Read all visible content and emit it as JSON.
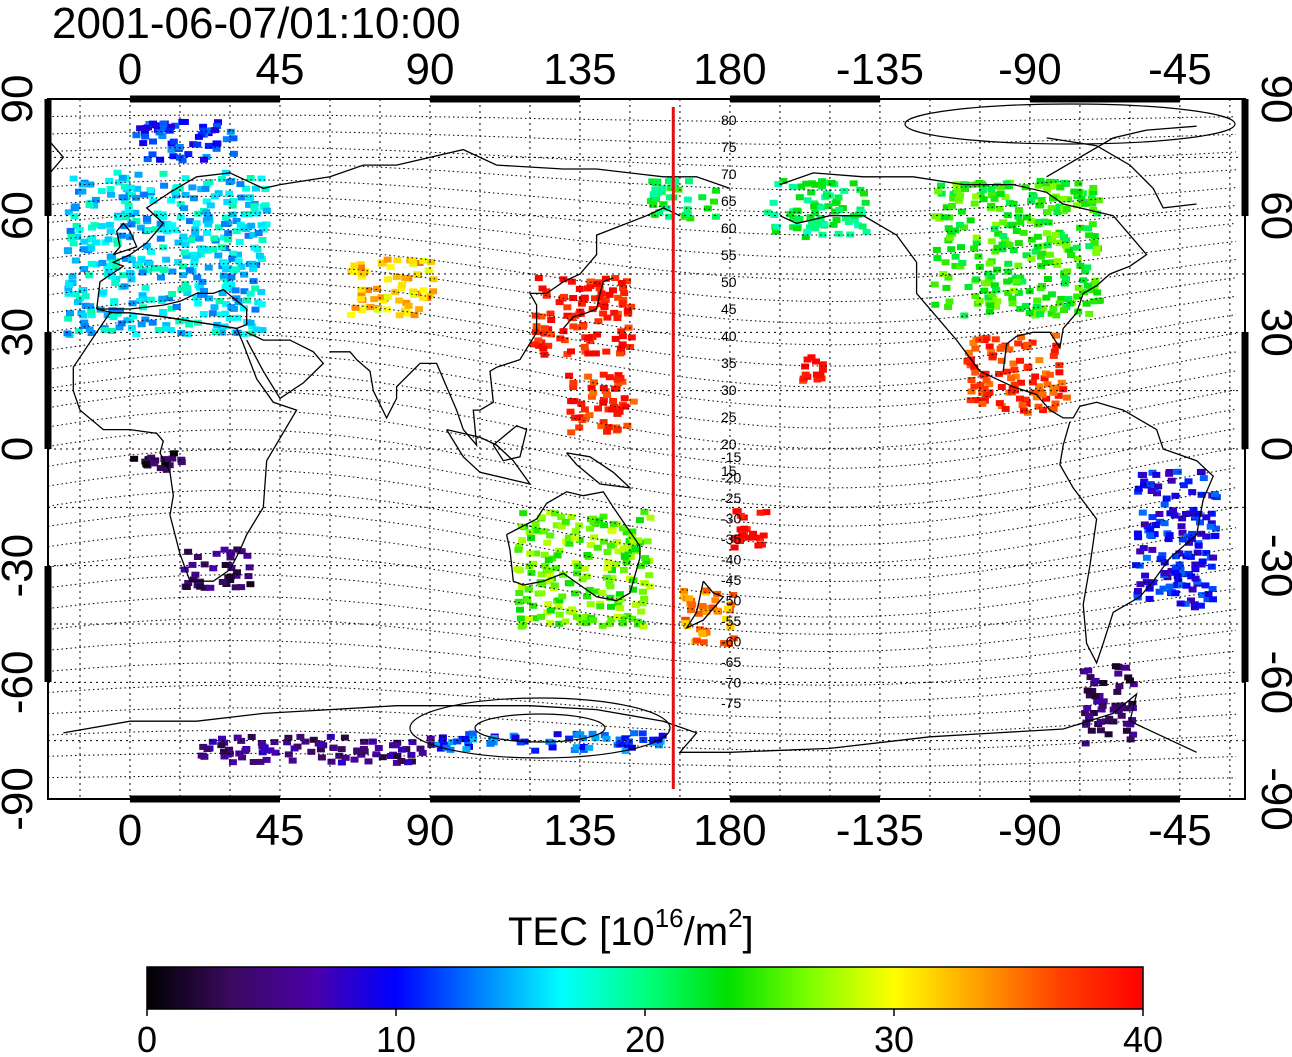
{
  "title": "2001-06-07/01:10:00",
  "longitude_ticks": [
    "0",
    "45",
    "90",
    "135",
    "180",
    "-135",
    "-90",
    "-45"
  ],
  "latitude_ticks": [
    "90",
    "60",
    "30",
    "0",
    "-30",
    "-60",
    "-90"
  ],
  "contour_labels": [
    "80",
    "75",
    "70",
    "65",
    "60",
    "55",
    "50",
    "45",
    "40",
    "35",
    "30",
    "25",
    "20",
    "15",
    "-15",
    "-20",
    "-25",
    "-30",
    "-35",
    "-40",
    "-45",
    "-50",
    "-55",
    "-60",
    "-65",
    "-70",
    "-75"
  ],
  "colorbar": {
    "title_prefix": "TEC  [10",
    "title_exp": "16",
    "title_mid": "/m",
    "title_exp2": "2",
    "title_suffix": "]",
    "tick_labels": [
      "0",
      "10",
      "20",
      "30",
      "40"
    ],
    "min": 0,
    "max": 40,
    "colors": [
      "#000000",
      "#3a0a5e",
      "#4b00a8",
      "#0000ff",
      "#0080ff",
      "#00ffff",
      "#00ff80",
      "#00e000",
      "#80ff00",
      "#ffff00",
      "#ffa000",
      "#ff4000",
      "#ff0000"
    ]
  },
  "marker_line": {
    "longitude": 163,
    "color": "#e01010"
  },
  "tec_regions": [
    {
      "name": "europe",
      "lon": [
        -20,
        40
      ],
      "lat": [
        30,
        72
      ],
      "tec": 16
    },
    {
      "name": "north-europe",
      "lon": [
        0,
        30
      ],
      "lat": [
        75,
        85
      ],
      "tec": 11
    },
    {
      "name": "central-asia",
      "lon": [
        65,
        90
      ],
      "lat": [
        35,
        50
      ],
      "tec": 32
    },
    {
      "name": "east-asia",
      "lon": [
        120,
        150
      ],
      "lat": [
        25,
        45
      ],
      "tec": 39
    },
    {
      "name": "southeast-asia",
      "lon": [
        130,
        150
      ],
      "lat": [
        5,
        20
      ],
      "tec": 38
    },
    {
      "name": "north-america",
      "lon": [
        -120,
        -70
      ],
      "lat": [
        35,
        70
      ],
      "tec": 24
    },
    {
      "name": "central-america",
      "lon": [
        -110,
        -80
      ],
      "lat": [
        10,
        30
      ],
      "tec": 37
    },
    {
      "name": "hawaii",
      "lon": [
        -160,
        -153
      ],
      "lat": [
        18,
        25
      ],
      "tec": 39
    },
    {
      "name": "south-america",
      "lon": [
        -60,
        -35
      ],
      "lat": [
        -40,
        -5
      ],
      "tec": 10
    },
    {
      "name": "south-africa",
      "lon": [
        15,
        35
      ],
      "lat": [
        -35,
        -25
      ],
      "tec": 4
    },
    {
      "name": "central-africa",
      "lon": [
        0,
        15
      ],
      "lat": [
        -5,
        0
      ],
      "tec": 2
    },
    {
      "name": "australia",
      "lon": [
        115,
        155
      ],
      "lat": [
        -45,
        -15
      ],
      "tec": 26
    },
    {
      "name": "new-zealand",
      "lon": [
        165,
        180
      ],
      "lat": [
        -50,
        -35
      ],
      "tec": 34
    },
    {
      "name": "fiji",
      "lon": [
        -180,
        -170
      ],
      "lat": [
        -25,
        -15
      ],
      "tec": 40
    },
    {
      "name": "antarctica-west",
      "lon": [
        20,
        90
      ],
      "lat": [
        -80,
        -73
      ],
      "tec": 5
    },
    {
      "name": "antarctica-east",
      "lon": [
        90,
        160
      ],
      "lat": [
        -77,
        -72
      ],
      "tec": 12
    },
    {
      "name": "patagonia",
      "lon": [
        -75,
        -60
      ],
      "lat": [
        -75,
        -55
      ],
      "tec": 4
    },
    {
      "name": "north-pacific",
      "lon": [
        155,
        175
      ],
      "lat": [
        60,
        70
      ],
      "tec": 22
    },
    {
      "name": "alaska",
      "lon": [
        -170,
        -140
      ],
      "lat": [
        55,
        70
      ],
      "tec": 21
    }
  ]
}
